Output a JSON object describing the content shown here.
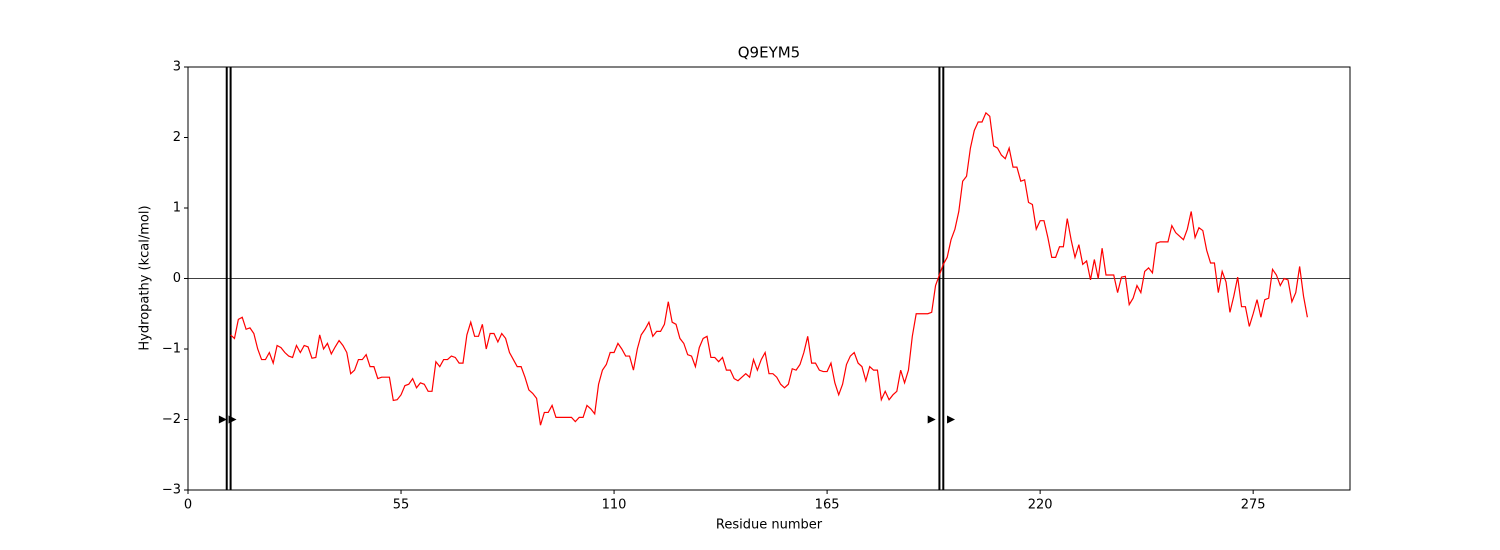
{
  "chart_data": {
    "type": "line",
    "title": "Q9EYM5",
    "xlabel": "Residue number",
    "ylabel": "Hydropathy (kcal/mol)",
    "xlim": [
      0,
      300
    ],
    "ylim": [
      -3,
      3
    ],
    "xticks": [
      0,
      55,
      110,
      165,
      220,
      275
    ],
    "yticks": [
      {
        "value": -3,
        "label": "−3"
      },
      {
        "value": -2,
        "label": "−2"
      },
      {
        "value": -1,
        "label": "−1"
      },
      0,
      1,
      2,
      3
    ],
    "hline": 0,
    "vlines": [
      10,
      11,
      194,
      195
    ],
    "markers": {
      "x": [
        9,
        11.5,
        192,
        197
      ],
      "y": [
        -2,
        -2,
        -2,
        -2
      ],
      "color": "#000000"
    },
    "series": [
      {
        "color": "#ff0000",
        "x": [
          11,
          12,
          13,
          14,
          15,
          16,
          17,
          18,
          19,
          20,
          21,
          22,
          23,
          24,
          25,
          26,
          27,
          28,
          29,
          30,
          31,
          32,
          33,
          34,
          35,
          36,
          37,
          38,
          39,
          40,
          41,
          42,
          43,
          44,
          45,
          46,
          47,
          48,
          49,
          50,
          51,
          52,
          53,
          54,
          55,
          56,
          57,
          58,
          59,
          60,
          61,
          62,
          63,
          64,
          65,
          66,
          67,
          68,
          69,
          70,
          71,
          72,
          73,
          74,
          75,
          76,
          77,
          78,
          79,
          80,
          81,
          82,
          83,
          84,
          85,
          86,
          87,
          88,
          89,
          90,
          91,
          92,
          93,
          94,
          95,
          96,
          97,
          98,
          99,
          100,
          101,
          102,
          103,
          104,
          105,
          106,
          107,
          108,
          109,
          110,
          111,
          112,
          113,
          114,
          115,
          116,
          117,
          118,
          119,
          120,
          121,
          122,
          123,
          124,
          125,
          126,
          127,
          128,
          129,
          130,
          131,
          132,
          133,
          134,
          135,
          136,
          137,
          138,
          139,
          140,
          141,
          142,
          143,
          144,
          145,
          146,
          147,
          148,
          149,
          150,
          151,
          152,
          153,
          154,
          155,
          156,
          157,
          158,
          159,
          160,
          161,
          162,
          163,
          164,
          165,
          166,
          167,
          168,
          169,
          170,
          171,
          172,
          173,
          174,
          175,
          176,
          177,
          178,
          179,
          180,
          181,
          182,
          183,
          184,
          185,
          186,
          187,
          188,
          189,
          190,
          191,
          192,
          193,
          194,
          195,
          196,
          197,
          198,
          199,
          200,
          201,
          202,
          203,
          204,
          205,
          206,
          207,
          208,
          209,
          210,
          211,
          212,
          213,
          214,
          215,
          216,
          217,
          218,
          219,
          220,
          221,
          222,
          223,
          224,
          225,
          226,
          227,
          228,
          229,
          230,
          231,
          232,
          233,
          234,
          235,
          236,
          237,
          238,
          239,
          240,
          241,
          242,
          243,
          244,
          245,
          246,
          247,
          248,
          249,
          250,
          251,
          252,
          253,
          254,
          255,
          256,
          257,
          258,
          259,
          260,
          261,
          262,
          263,
          264,
          265,
          266,
          267,
          268,
          269,
          270,
          271,
          272,
          273,
          274,
          275,
          276,
          277,
          278,
          279,
          280,
          281,
          282,
          283,
          284,
          285,
          286,
          287,
          288,
          289
        ],
        "values": [
          -0.8,
          -0.85,
          -0.58,
          -0.55,
          -0.72,
          -0.7,
          -0.78,
          -1.0,
          -1.15,
          -1.15,
          -1.05,
          -1.2,
          -0.95,
          -0.98,
          -1.05,
          -1.1,
          -1.12,
          -0.95,
          -1.05,
          -0.95,
          -0.97,
          -1.13,
          -1.12,
          -0.8,
          -1.0,
          -0.92,
          -1.07,
          -0.97,
          -0.88,
          -0.95,
          -1.05,
          -1.35,
          -1.3,
          -1.15,
          -1.15,
          -1.08,
          -1.25,
          -1.25,
          -1.42,
          -1.4,
          -1.4,
          -1.4,
          -1.73,
          -1.72,
          -1.65,
          -1.52,
          -1.5,
          -1.42,
          -1.55,
          -1.48,
          -1.5,
          -1.6,
          -1.6,
          -1.18,
          -1.25,
          -1.15,
          -1.15,
          -1.1,
          -1.12,
          -1.2,
          -1.2,
          -0.8,
          -0.62,
          -0.82,
          -0.82,
          -0.65,
          -1.0,
          -0.78,
          -0.78,
          -0.9,
          -0.78,
          -0.85,
          -1.05,
          -1.15,
          -1.25,
          -1.25,
          -1.4,
          -1.58,
          -1.63,
          -1.7,
          -2.08,
          -1.9,
          -1.9,
          -1.8,
          -1.97,
          -1.97,
          -1.97,
          -1.97,
          -1.97,
          -2.03,
          -1.97,
          -1.97,
          -1.8,
          -1.85,
          -1.92,
          -1.5,
          -1.3,
          -1.22,
          -1.05,
          -1.05,
          -0.92,
          -1.0,
          -1.1,
          -1.1,
          -1.3,
          -1.0,
          -0.8,
          -0.72,
          -0.62,
          -0.82,
          -0.75,
          -0.75,
          -0.65,
          -0.33,
          -0.62,
          -0.65,
          -0.85,
          -0.92,
          -1.08,
          -1.1,
          -1.25,
          -0.98,
          -0.85,
          -0.82,
          -1.12,
          -1.12,
          -1.18,
          -1.12,
          -1.3,
          -1.3,
          -1.42,
          -1.45,
          -1.4,
          -1.35,
          -1.4,
          -1.15,
          -1.3,
          -1.15,
          -1.05,
          -1.35,
          -1.35,
          -1.4,
          -1.5,
          -1.55,
          -1.5,
          -1.28,
          -1.3,
          -1.22,
          -1.05,
          -0.82,
          -1.2,
          -1.2,
          -1.3,
          -1.32,
          -1.32,
          -1.2,
          -1.48,
          -1.65,
          -1.5,
          -1.22,
          -1.1,
          -1.05,
          -1.2,
          -1.25,
          -1.45,
          -1.25,
          -1.3,
          -1.3,
          -1.72,
          -1.6,
          -1.72,
          -1.65,
          -1.6,
          -1.3,
          -1.48,
          -1.3,
          -0.82,
          -0.5,
          -0.5,
          -0.5,
          -0.5,
          -0.48,
          -0.1,
          0.05,
          0.2,
          0.3,
          0.55,
          0.7,
          0.95,
          1.38,
          1.45,
          1.85,
          2.1,
          2.22,
          2.22,
          2.35,
          2.3,
          1.88,
          1.85,
          1.75,
          1.7,
          1.85,
          1.58,
          1.58,
          1.38,
          1.4,
          1.08,
          1.05,
          0.7,
          0.82,
          0.82,
          0.58,
          0.3,
          0.3,
          0.45,
          0.45,
          0.85,
          0.55,
          0.3,
          0.48,
          0.2,
          0.25,
          -0.02,
          0.27,
          0.0,
          0.43,
          0.05,
          0.05,
          0.05,
          -0.2,
          0.02,
          0.03,
          -0.37,
          -0.28,
          -0.1,
          -0.2,
          0.1,
          0.15,
          0.08,
          0.5,
          0.52,
          0.52,
          0.52,
          0.75,
          0.65,
          0.6,
          0.55,
          0.7,
          0.95,
          0.58,
          0.72,
          0.68,
          0.4,
          0.22,
          0.22,
          -0.2,
          0.1,
          -0.05,
          -0.48,
          -0.25,
          0.02,
          -0.4,
          -0.4,
          -0.68,
          -0.5,
          -0.3,
          -0.55,
          -0.3,
          -0.28,
          0.13,
          0.05,
          -0.1,
          0.0,
          -0.02,
          -0.33,
          -0.2,
          0.17,
          -0.25,
          -0.55
        ]
      }
    ]
  }
}
